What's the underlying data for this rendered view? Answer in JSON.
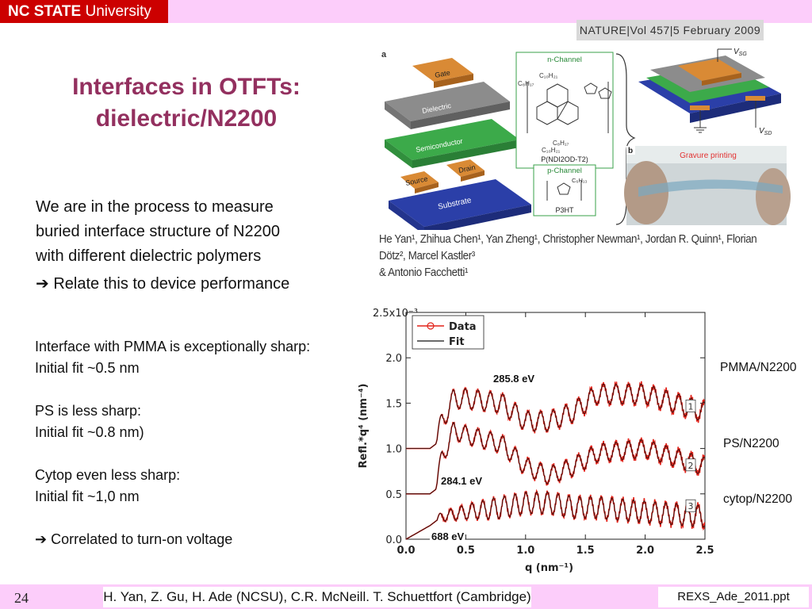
{
  "header": {
    "brand_bold": "NC STATE",
    "brand_rest": "University"
  },
  "title": {
    "line1": "Interfaces in OTFTs:",
    "line2": "dielectric/N2200"
  },
  "intro": {
    "lines": [
      "We are in the process to measure",
      "buried interface structure of N2200",
      "with different dielectric polymers"
    ],
    "arrow_line": "Relate this to device performance"
  },
  "notes": {
    "pmma_1": "Interface with PMMA is exceptionally sharp:",
    "pmma_2": "Initial fit ~0.5 nm",
    "ps_1": "PS is less sharp:",
    "ps_2": "Initial fit ~0.8 nm)",
    "cytop_1": "Cytop even less sharp:",
    "cytop_2": "Initial fit ~1,0 nm",
    "conclusion": "Correlated to turn-on voltage"
  },
  "nature_figure": {
    "journal_header": "NATURE|Vol 457|5 February 2009",
    "panel_a": "a",
    "panel_b": "b",
    "layers": {
      "gate": "Gate",
      "dielectric": "Dielectric",
      "semiconductor": "Semiconductor",
      "source": "Source",
      "drain": "Drain",
      "substrate": "Substrate"
    },
    "n_channel": "n-Channel",
    "n_polymer": "P(NDI2OD-T2)",
    "p_channel": "p-Channel",
    "p_polymer": "P3HT",
    "vsg": "V",
    "vsg_sub": "SG",
    "vsd": "V",
    "vsd_sub": "SD",
    "gravure": "Gravure printing",
    "authors_line1": "He Yan¹, Zhihua Chen¹, Yan Zheng¹, Christopher Newman¹, Jordan R. Quinn¹, Florian Dötz², Marcel Kastler³",
    "authors_line2": "& Antonio Facchetti¹"
  },
  "chart_data": {
    "type": "line",
    "xlabel": "q (nm⁻¹)",
    "ylabel": "Refl.*q⁴ (nm⁻⁴)",
    "y_multiplier": "x10⁻³",
    "xlim": [
      0.0,
      2.5
    ],
    "ylim": [
      0.0,
      2.5
    ],
    "xticks": [
      "0.0",
      "0.5",
      "1.0",
      "1.5",
      "2.0",
      "2.5"
    ],
    "yticks": [
      "0.0",
      "0.5",
      "1.0",
      "1.5",
      "2.0",
      "2.5"
    ],
    "legend": [
      "Data",
      "Fit"
    ],
    "legend_position": "top-left",
    "curve_markers": [
      "1",
      "2",
      "3"
    ],
    "series_labels": [
      "PMMA/N2200",
      "PS/N2200",
      "cytop/N2200"
    ],
    "energy_labels": [
      "285.8 eV",
      "284.1 eV",
      "688 eV"
    ],
    "series": [
      {
        "name": "PMMA/N2200",
        "baseline": 1.0,
        "x": [
          0.0,
          0.2,
          0.25,
          0.3,
          0.4,
          0.5,
          0.8,
          1.0,
          1.2,
          1.4,
          1.6,
          2.0,
          2.5
        ],
        "y": [
          1.0,
          1.0,
          1.05,
          1.3,
          1.55,
          1.55,
          1.5,
          1.3,
          1.3,
          1.4,
          1.6,
          1.6,
          1.4
        ]
      },
      {
        "name": "PS/N2200",
        "baseline": 0.5,
        "x": [
          0.0,
          0.2,
          0.25,
          0.3,
          0.4,
          0.5,
          0.8,
          1.0,
          1.2,
          1.4,
          1.6,
          2.0,
          2.5
        ],
        "y": [
          0.5,
          0.5,
          0.55,
          0.9,
          1.2,
          1.15,
          1.05,
          0.8,
          0.7,
          0.8,
          0.95,
          1.0,
          0.8
        ]
      },
      {
        "name": "cytop/N2200",
        "baseline": 0.0,
        "x": [
          0.0,
          0.2,
          0.3,
          0.5,
          0.8,
          1.0,
          1.2,
          1.4,
          1.6,
          2.0,
          2.5
        ],
        "y": [
          0.0,
          0.15,
          0.25,
          0.3,
          0.35,
          0.4,
          0.4,
          0.35,
          0.35,
          0.3,
          0.25
        ]
      }
    ]
  },
  "footer": {
    "page_number": "24",
    "citation": "H. Yan, Z. Gu, H. Ade (NCSU), C.R. McNeill. T. Schuettfort (Cambridge)",
    "filename": "REXS_Ade_2011.ppt"
  }
}
